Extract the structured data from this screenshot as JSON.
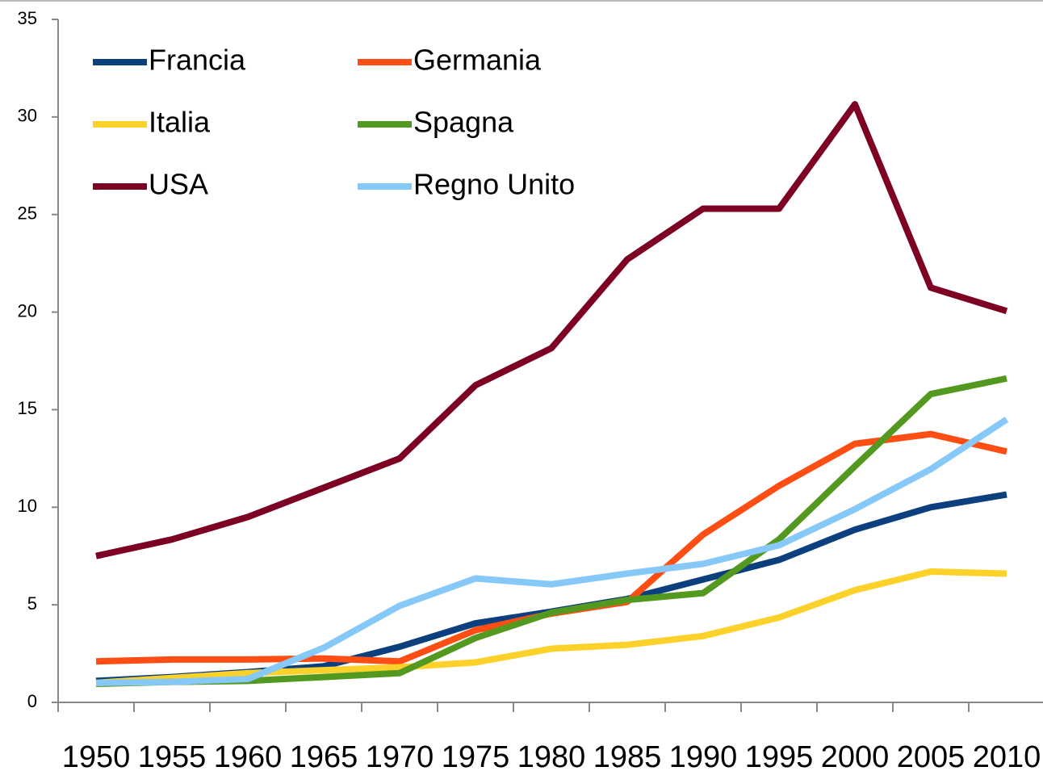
{
  "chart_data": {
    "type": "line",
    "categories": [
      "1950",
      "1955",
      "1960",
      "1965",
      "1970",
      "1975",
      "1980",
      "1985",
      "1990",
      "1995",
      "2000",
      "2005",
      "2010"
    ],
    "series": [
      {
        "name": "Francia",
        "color": "#0b3f7e",
        "values": [
          1.1,
          1.3,
          1.55,
          1.85,
          2.85,
          4.05,
          4.65,
          5.3,
          6.3,
          7.3,
          8.85,
          10.0,
          10.65
        ]
      },
      {
        "name": "Germania",
        "color": "#ff4e14",
        "values": [
          2.1,
          2.2,
          2.2,
          2.25,
          2.1,
          3.7,
          4.55,
          5.15,
          8.6,
          11.1,
          13.25,
          13.75,
          12.85
        ]
      },
      {
        "name": "Italia",
        "color": "#fcd12a",
        "values": [
          1.0,
          1.25,
          1.5,
          1.65,
          1.8,
          2.05,
          2.75,
          2.95,
          3.4,
          4.35,
          5.75,
          6.7,
          6.6
        ]
      },
      {
        "name": "Spagna",
        "color": "#53981f",
        "values": [
          0.95,
          1.05,
          1.1,
          1.3,
          1.5,
          3.3,
          4.6,
          5.25,
          5.6,
          8.35,
          12.1,
          15.8,
          16.6
        ]
      },
      {
        "name": "USA",
        "color": "#7c0122",
        "values": [
          7.5,
          8.35,
          9.5,
          11.0,
          12.5,
          16.25,
          18.15,
          22.7,
          25.3,
          25.3,
          30.65,
          21.25,
          20.05
        ]
      },
      {
        "name": "Regno Unito",
        "color": "#86c9f8",
        "values": [
          1.0,
          1.05,
          1.2,
          2.8,
          4.95,
          6.35,
          6.05,
          6.6,
          7.1,
          8.05,
          9.9,
          11.95,
          14.5
        ]
      }
    ],
    "ylim": [
      0,
      35
    ],
    "yticks": [
      0,
      5,
      10,
      15,
      20,
      25,
      30,
      35
    ],
    "legend": "upper left"
  }
}
